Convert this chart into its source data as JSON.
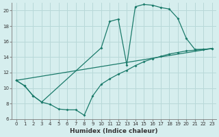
{
  "title": "",
  "xlabel": "Humidex (Indice chaleur)",
  "background_color": "#d6eeee",
  "grid_color": "#b8d8d8",
  "line_color": "#1a7a6a",
  "xlim": [
    -0.5,
    23.5
  ],
  "ylim": [
    6,
    21
  ],
  "yticks": [
    6,
    8,
    10,
    12,
    14,
    16,
    18,
    20
  ],
  "xticks": [
    0,
    1,
    2,
    3,
    4,
    5,
    6,
    7,
    8,
    9,
    10,
    11,
    12,
    13,
    14,
    15,
    16,
    17,
    18,
    19,
    20,
    21,
    22,
    23
  ],
  "curve1_x": [
    0,
    1,
    2,
    3,
    10,
    11,
    12,
    13,
    14,
    15,
    16,
    17,
    18,
    19,
    20,
    21,
    22,
    23
  ],
  "curve1_y": [
    11.0,
    10.3,
    9.0,
    8.2,
    15.2,
    18.6,
    18.9,
    13.0,
    20.5,
    20.8,
    20.7,
    20.4,
    20.2,
    19.0,
    16.4,
    15.0,
    15.0,
    15.1
  ],
  "curve2_x": [
    0,
    23
  ],
  "curve2_y": [
    11.0,
    15.1
  ],
  "curve3_x": [
    0,
    1,
    2,
    3,
    4,
    5,
    6,
    7,
    8,
    9,
    10,
    11,
    12,
    13,
    14,
    15,
    16,
    17,
    18,
    19,
    20,
    21,
    22,
    23
  ],
  "curve3_y": [
    11.0,
    10.3,
    9.0,
    8.2,
    7.9,
    7.3,
    7.2,
    7.2,
    6.5,
    9.0,
    10.5,
    11.2,
    11.8,
    12.3,
    12.9,
    13.4,
    13.8,
    14.1,
    14.4,
    14.6,
    14.8,
    14.9,
    15.0,
    15.1
  ]
}
